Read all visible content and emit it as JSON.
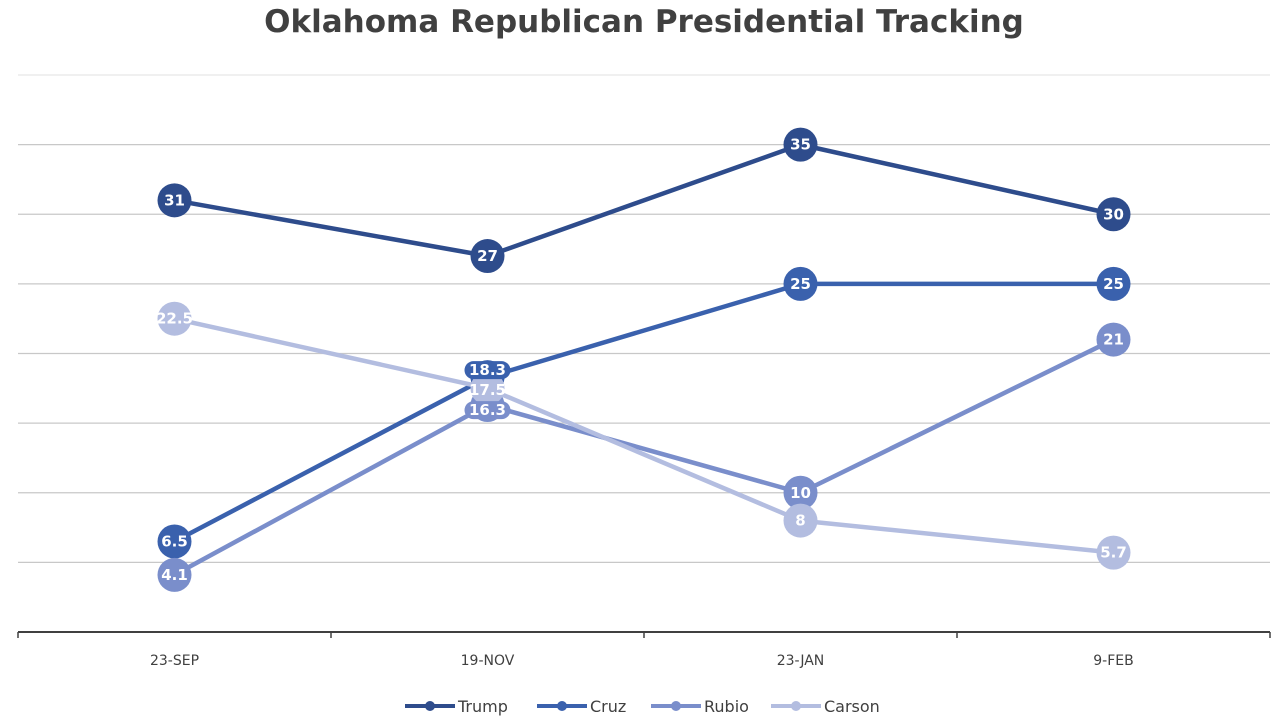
{
  "chart_data": {
    "type": "line",
    "title": "Oklahoma Republican Presidential Tracking",
    "categories": [
      "23-SEP",
      "19-NOV",
      "23-JAN",
      "9-FEB"
    ],
    "series": [
      {
        "name": "Trump",
        "values": [
          31,
          27,
          35,
          30
        ],
        "color": "#2E4C8C"
      },
      {
        "name": "Cruz",
        "values": [
          6.5,
          18.3,
          25,
          25
        ],
        "color": "#3A61AD"
      },
      {
        "name": "Rubio",
        "values": [
          4.1,
          16.3,
          10,
          21
        ],
        "color": "#7A8ECB"
      },
      {
        "name": "Carson",
        "values": [
          22.5,
          17.5,
          8,
          5.7
        ],
        "color": "#B3BDE0"
      }
    ],
    "ylim": [
      0,
      40
    ],
    "ytick_step": 5,
    "y_tick_labels_shown": false,
    "grid": true,
    "data_labels": true,
    "legend": "bottom",
    "xlabel": "",
    "ylabel": ""
  }
}
